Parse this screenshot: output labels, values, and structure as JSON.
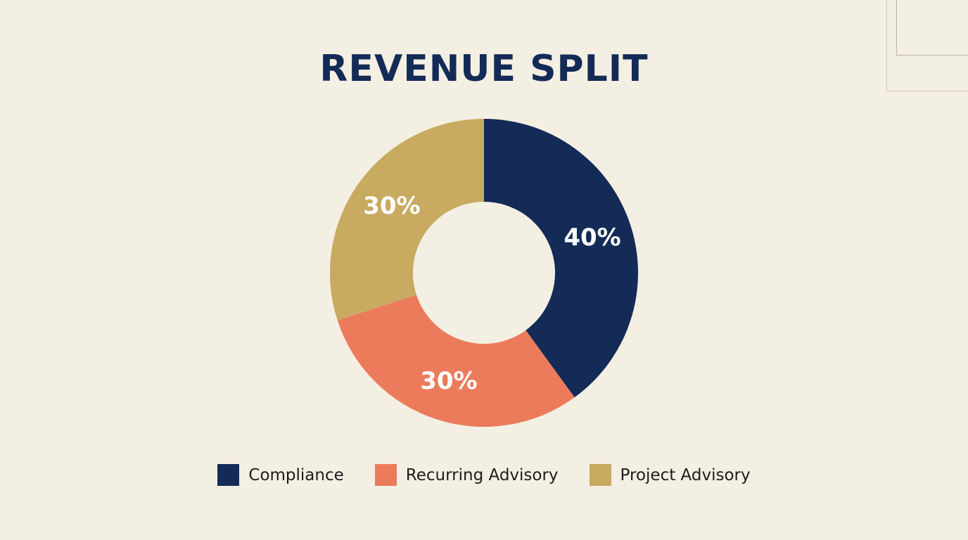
{
  "title": "REVENUE SPLIT",
  "colors": {
    "background": "#f4efe3",
    "compliance": "#142b57",
    "recurring_advisory": "#ec7b5c",
    "project_advisory": "#c8aa60",
    "title": "#142b57",
    "label_text": "#ffffff"
  },
  "legend": [
    {
      "label": "Compliance",
      "color": "#142b57"
    },
    {
      "label": "Recurring Advisory",
      "color": "#ec7b5c"
    },
    {
      "label": "Project Advisory",
      "color": "#c8aa60"
    }
  ],
  "labels": {
    "compliance": "40%",
    "recurring_advisory": "30%",
    "project_advisory": "30%"
  },
  "chart_data": {
    "type": "pie",
    "variant": "donut",
    "title": "REVENUE SPLIT",
    "categories": [
      "Compliance",
      "Recurring Advisory",
      "Project Advisory"
    ],
    "values": [
      40,
      30,
      30
    ],
    "unit": "%",
    "colors": [
      "#142b57",
      "#ec7b5c",
      "#c8aa60"
    ],
    "start_angle": "12 o'clock, clockwise",
    "data_labels": [
      "40%",
      "30%",
      "30%"
    ],
    "legend_position": "bottom",
    "grid": false
  }
}
